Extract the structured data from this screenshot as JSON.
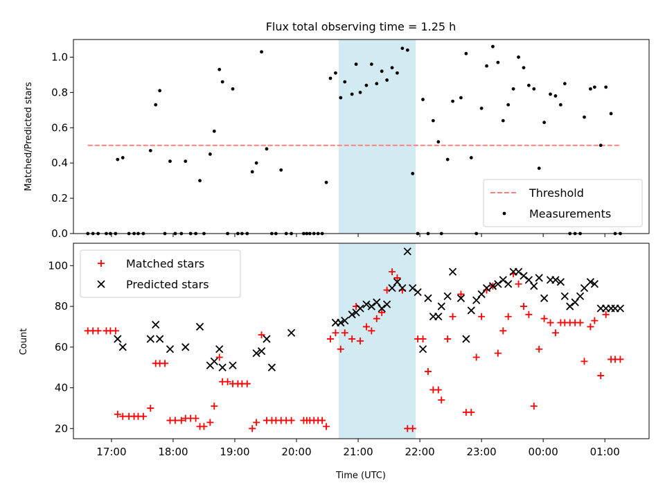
{
  "chart_data": [
    {
      "type": "scatter",
      "title": "Flux total observing time = 1.25 h",
      "xlabel": "",
      "ylabel": "Matched/Predicted stars",
      "xlim": [
        "16:23",
        "01:43"
      ],
      "ylim": [
        0,
        1.1
      ],
      "yticks": [
        0.0,
        0.2,
        0.4,
        0.6,
        0.8,
        1.0
      ],
      "ytick_labels": [
        "0.0",
        "0.2",
        "0.4",
        "0.6",
        "0.8",
        "1.0"
      ],
      "grid": false,
      "legend_position": "lower-right",
      "shaded_interval": [
        "20:41",
        "21:56"
      ],
      "shaded_color": "#add8e6",
      "series": [
        {
          "name": "Threshold",
          "style": "dashed-line",
          "color": "#ff7f7f",
          "x": [
            "16:37",
            "01:15"
          ],
          "y": [
            0.5,
            0.5
          ]
        },
        {
          "name": "Measurements",
          "style": "dot",
          "color": "#000000",
          "x": [
            "16:37",
            "16:42",
            "16:47",
            "16:55",
            "16:59",
            "17:04",
            "17:06",
            "17:11",
            "17:17",
            "17:22",
            "17:26",
            "17:31",
            "17:38",
            "17:43",
            "17:47",
            "17:52",
            "17:57",
            "18:02",
            "18:08",
            "18:12",
            "18:17",
            "18:22",
            "18:26",
            "18:30",
            "18:36",
            "18:40",
            "18:45",
            "18:48",
            "18:53",
            "18:58",
            "19:03",
            "19:07",
            "19:12",
            "19:17",
            "19:21",
            "19:26",
            "19:31",
            "19:36",
            "19:40",
            "19:45",
            "19:50",
            "19:55",
            "20:07",
            "20:10",
            "20:13",
            "20:17",
            "20:21",
            "20:25",
            "20:29",
            "20:33",
            "20:38",
            "20:43",
            "20:47",
            "20:54",
            "20:58",
            "21:02",
            "21:08",
            "21:13",
            "21:18",
            "21:23",
            "21:28",
            "21:33",
            "21:38",
            "21:43",
            "21:48",
            "21:53",
            "21:58",
            "22:03",
            "22:08",
            "22:13",
            "22:18",
            "22:21",
            "22:27",
            "22:32",
            "22:40",
            "22:45",
            "22:50",
            "22:55",
            "23:00",
            "23:05",
            "23:11",
            "23:16",
            "23:21",
            "23:26",
            "23:31",
            "23:36",
            "23:41",
            "23:46",
            "23:51",
            "23:56",
            "00:01",
            "00:07",
            "00:12",
            "00:17",
            "00:21",
            "00:26",
            "00:31",
            "00:36",
            "00:40",
            "00:46",
            "00:50",
            "00:56",
            "01:01",
            "01:06",
            "01:10",
            "01:15"
          ],
          "y": [
            0,
            0,
            0,
            0,
            0,
            0,
            0.42,
            0.43,
            0,
            0,
            0,
            0,
            0.47,
            0.73,
            0.81,
            0,
            0.41,
            0,
            0,
            0.41,
            0,
            0,
            0.3,
            0,
            0.45,
            0.58,
            0.93,
            0.86,
            0,
            0.82,
            0,
            0,
            0,
            0.35,
            0.4,
            1.03,
            0.48,
            0,
            0,
            0.36,
            0,
            0,
            0,
            0,
            0,
            0,
            0,
            0,
            0.29,
            0.88,
            0.91,
            0.77,
            0.86,
            0.79,
            0.96,
            0.8,
            0.84,
            0.96,
            0.85,
            0.92,
            0.87,
            0.94,
            0.91,
            1.05,
            1.04,
            0.34,
            0,
            0.76,
            0,
            0.64,
            0.52,
            0,
            0.42,
            0.75,
            0.77,
            1.02,
            0.43,
            0,
            0.71,
            0.95,
            1.06,
            0.97,
            0.64,
            0.73,
            0.82,
            1.0,
            0.94,
            0.84,
            0.82,
            0.37,
            0.63,
            0.79,
            0.78,
            0.73,
            0.85,
            0,
            0,
            0,
            0.66,
            0.82,
            0.83,
            0.5,
            0.83,
            0.68,
            0,
            0
          ]
        }
      ]
    },
    {
      "type": "scatter",
      "xlabel": "Time (UTC)",
      "ylabel": "Count",
      "xlim": [
        "16:23",
        "01:43"
      ],
      "ylim": [
        15,
        111
      ],
      "xticks": [
        "17:00",
        "18:00",
        "19:00",
        "20:00",
        "21:00",
        "22:00",
        "23:00",
        "00:00",
        "01:00"
      ],
      "yticks": [
        20,
        40,
        60,
        80,
        100
      ],
      "ytick_labels": [
        "20",
        "40",
        "60",
        "80",
        "100"
      ],
      "grid": false,
      "legend_position": "upper-left",
      "shaded_interval": [
        "20:41",
        "21:56"
      ],
      "shaded_color": "#add8e6",
      "series": [
        {
          "name": "Matched stars",
          "style": "plus",
          "color": "#ff0000",
          "x": [
            "16:37",
            "16:42",
            "16:47",
            "16:55",
            "16:59",
            "17:04",
            "17:06",
            "17:11",
            "17:17",
            "17:22",
            "17:26",
            "17:31",
            "17:38",
            "17:43",
            "17:47",
            "17:52",
            "17:57",
            "18:02",
            "18:08",
            "18:12",
            "18:17",
            "18:22",
            "18:26",
            "18:30",
            "18:36",
            "18:40",
            "18:45",
            "18:48",
            "18:53",
            "18:58",
            "19:03",
            "19:07",
            "19:12",
            "19:17",
            "19:21",
            "19:26",
            "19:31",
            "19:36",
            "19:40",
            "19:45",
            "19:50",
            "19:55",
            "20:07",
            "20:10",
            "20:13",
            "20:17",
            "20:21",
            "20:25",
            "20:29",
            "20:33",
            "20:38",
            "20:43",
            "20:47",
            "20:54",
            "20:58",
            "21:02",
            "21:08",
            "21:13",
            "21:18",
            "21:23",
            "21:28",
            "21:33",
            "21:38",
            "21:43",
            "21:48",
            "21:53",
            "21:58",
            "22:03",
            "22:08",
            "22:13",
            "22:18",
            "22:21",
            "22:27",
            "22:32",
            "22:40",
            "22:45",
            "22:50",
            "22:55",
            "23:00",
            "23:05",
            "23:11",
            "23:16",
            "23:21",
            "23:26",
            "23:31",
            "23:36",
            "23:41",
            "23:46",
            "23:51",
            "23:56",
            "00:01",
            "00:07",
            "00:12",
            "00:17",
            "00:21",
            "00:26",
            "00:31",
            "00:36",
            "00:40",
            "00:46",
            "00:50",
            "00:56",
            "01:01",
            "01:06",
            "01:10",
            "01:15"
          ],
          "y": [
            68,
            68,
            68,
            68,
            68,
            68,
            27,
            26,
            26,
            26,
            26,
            26,
            30,
            52,
            52,
            52,
            24,
            24,
            24,
            25,
            25,
            25,
            21,
            21,
            23,
            31,
            55,
            43,
            43,
            42,
            42,
            42,
            42,
            20,
            23,
            66,
            24,
            24,
            24,
            24,
            24,
            24,
            24,
            24,
            24,
            24,
            24,
            24,
            21,
            64,
            67,
            59,
            67,
            64,
            80,
            63,
            70,
            68,
            74,
            77,
            88,
            97,
            94,
            88,
            20,
            20,
            64,
            64,
            48,
            39,
            39,
            34,
            64,
            75,
            86,
            28,
            28,
            55,
            75,
            88,
            90,
            57,
            68,
            75,
            96,
            91,
            80,
            76,
            31,
            59,
            74,
            72,
            67,
            72,
            72,
            72,
            72,
            72,
            53,
            70,
            73,
            46,
            76,
            54,
            54,
            54
          ]
        },
        {
          "name": "Predicted stars",
          "style": "x",
          "color": "#000000",
          "x": [
            "17:06",
            "17:11",
            "17:38",
            "17:43",
            "17:47",
            "17:57",
            "18:12",
            "18:26",
            "18:36",
            "18:40",
            "18:45",
            "18:48",
            "18:58",
            "19:21",
            "19:26",
            "19:31",
            "19:36",
            "19:55",
            "20:38",
            "20:43",
            "20:47",
            "20:54",
            "20:58",
            "21:02",
            "21:08",
            "21:13",
            "21:18",
            "21:23",
            "21:28",
            "21:33",
            "21:38",
            "21:43",
            "21:48",
            "21:53",
            "21:58",
            "22:03",
            "22:08",
            "22:13",
            "22:18",
            "22:21",
            "22:27",
            "22:32",
            "22:40",
            "22:45",
            "22:50",
            "22:55",
            "23:00",
            "23:05",
            "23:11",
            "23:16",
            "23:21",
            "23:26",
            "23:31",
            "23:36",
            "23:41",
            "23:46",
            "23:51",
            "23:56",
            "00:01",
            "00:07",
            "00:12",
            "00:17",
            "00:21",
            "00:26",
            "00:31",
            "00:36",
            "00:40",
            "00:46",
            "00:50",
            "00:56",
            "01:01",
            "01:06",
            "01:10",
            "01:15"
          ],
          "y": [
            64,
            60,
            64,
            71,
            64,
            59,
            60,
            70,
            51,
            53,
            59,
            50,
            51,
            57,
            58,
            64,
            50,
            67,
            72,
            72,
            73,
            76,
            77,
            79,
            81,
            80,
            82,
            79,
            81,
            89,
            92,
            89,
            107,
            89,
            87,
            59,
            84,
            75,
            75,
            80,
            85,
            97,
            84,
            64,
            78,
            83,
            86,
            89,
            90,
            91,
            93,
            91,
            97,
            97,
            95,
            93,
            90,
            94,
            84,
            93,
            93,
            92,
            85,
            80,
            82,
            85,
            89,
            92,
            91,
            79,
            79,
            79,
            79,
            79
          ]
        }
      ]
    }
  ]
}
